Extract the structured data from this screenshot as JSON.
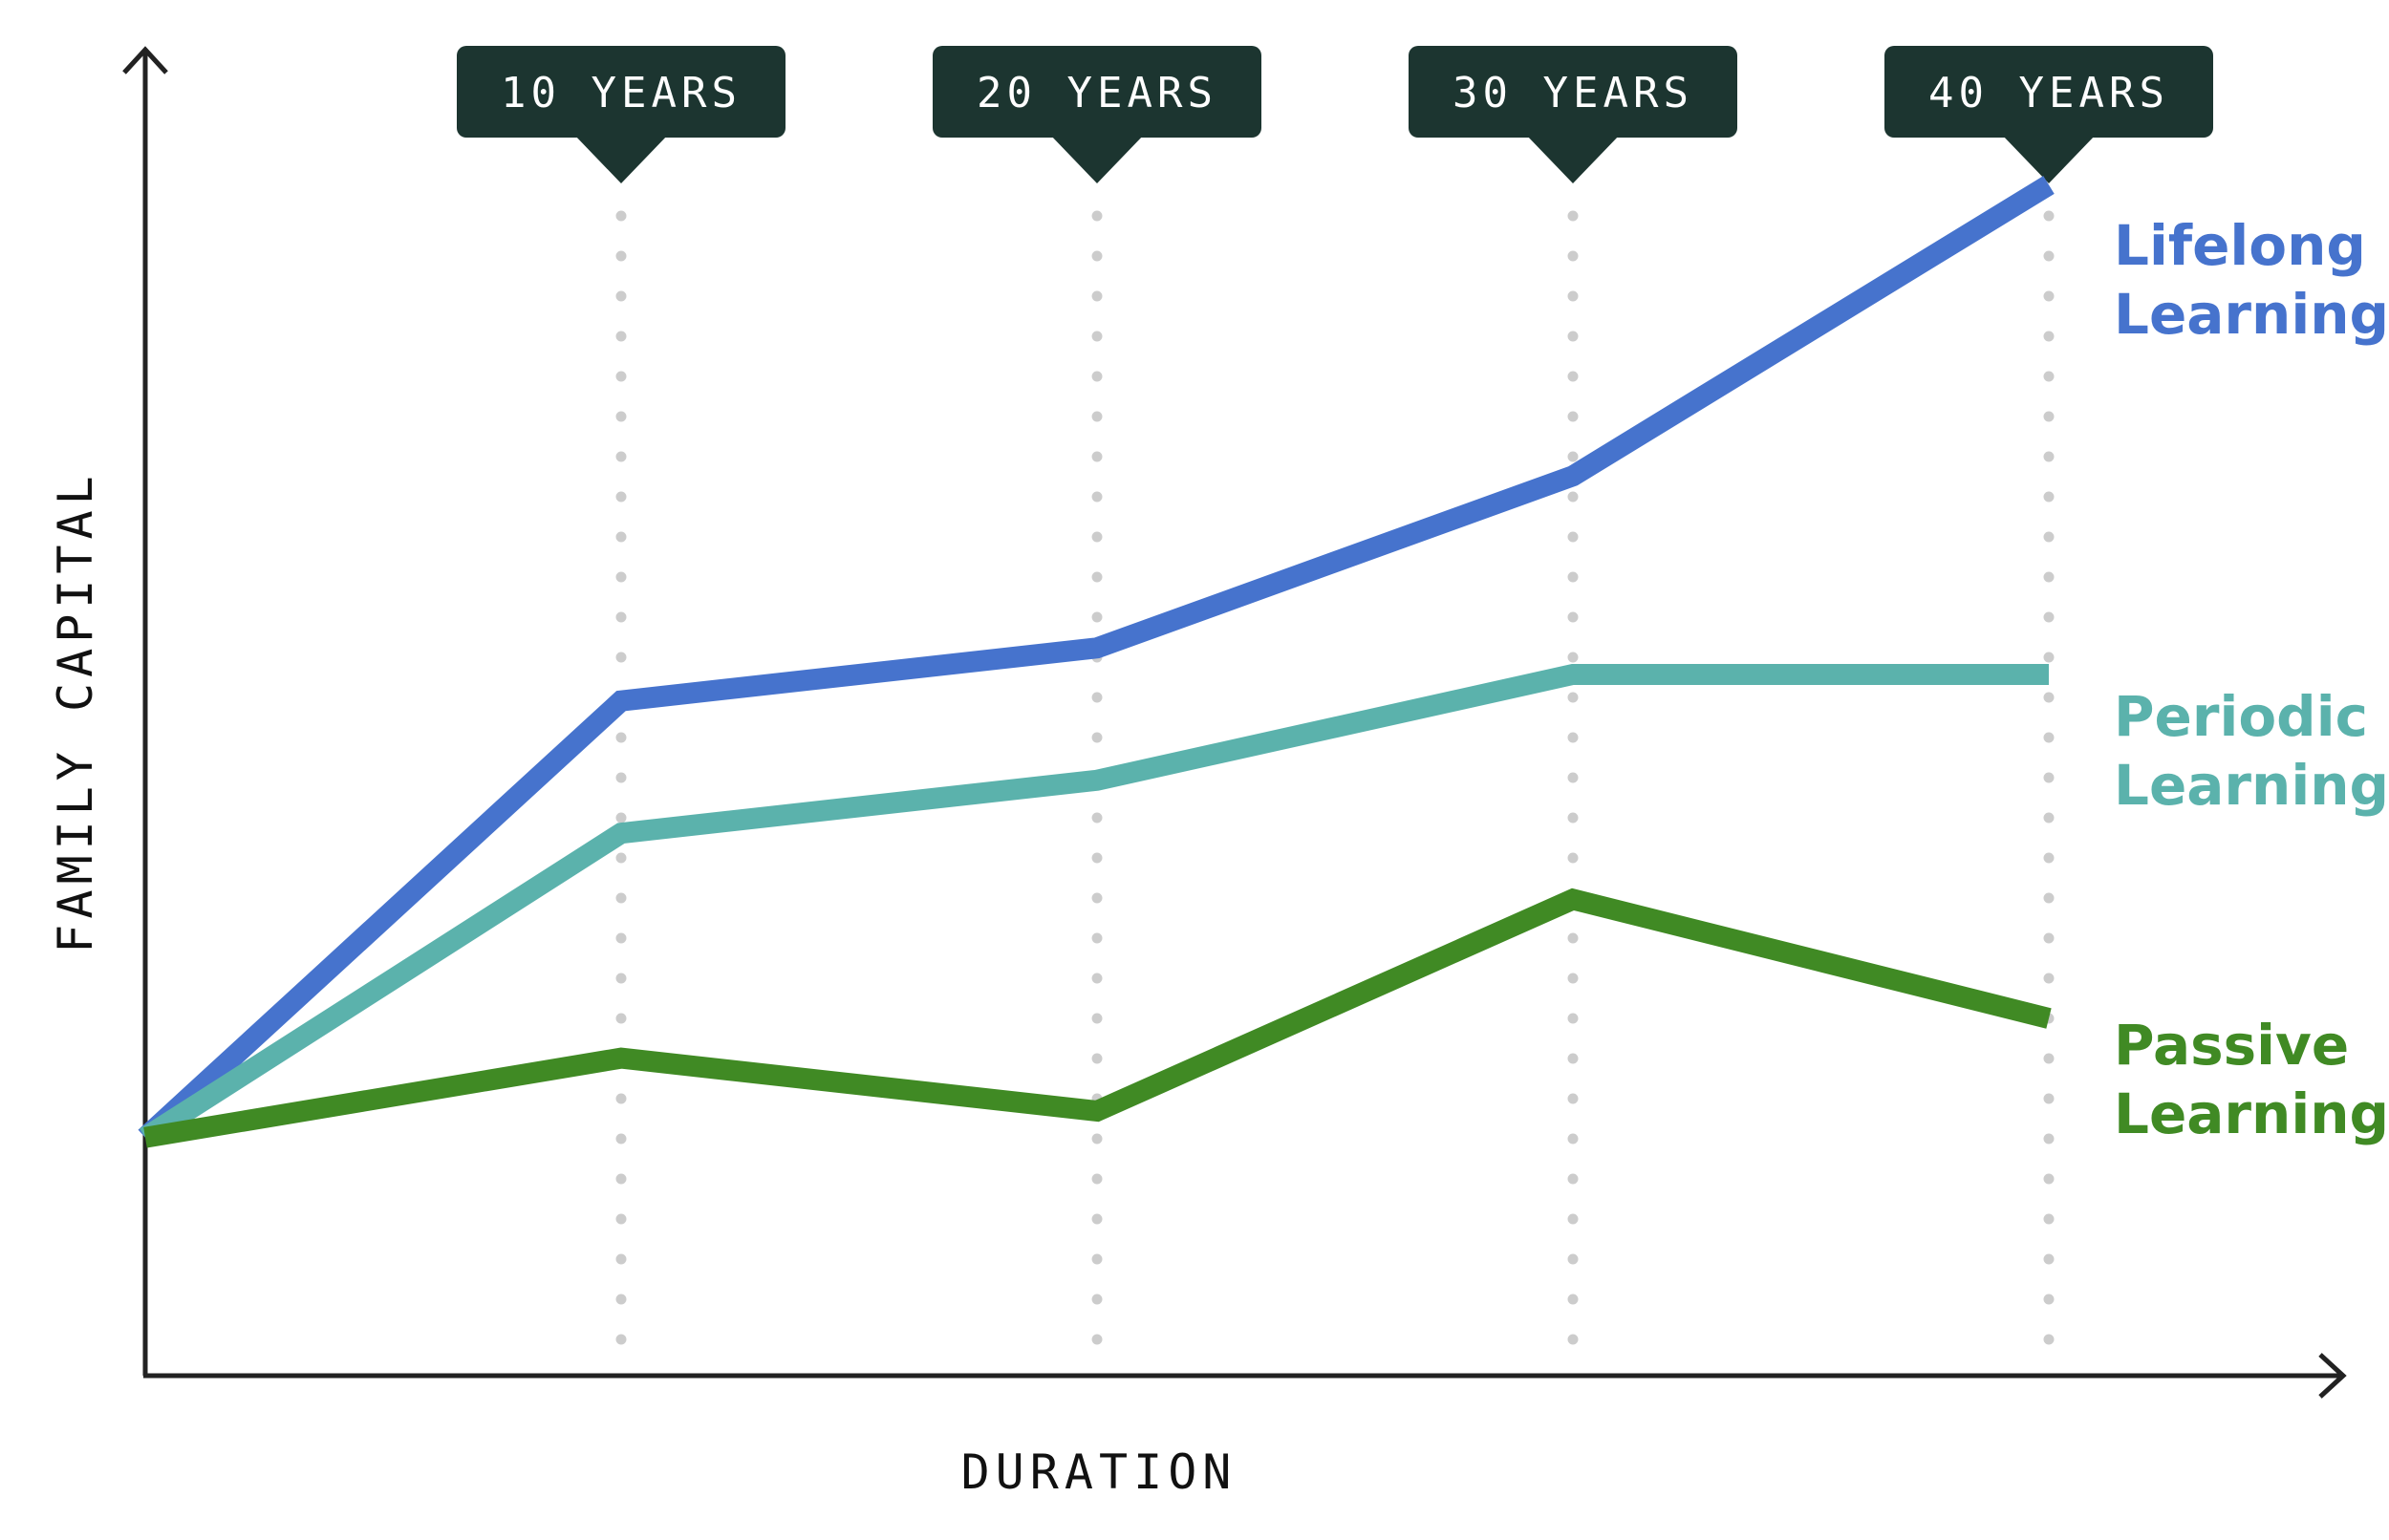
{
  "chart_data": {
    "type": "line",
    "title": "",
    "xlabel": "DURATION",
    "ylabel": "FAMILY CAPITAL",
    "x": [
      0,
      10,
      20,
      30,
      40
    ],
    "xlim": [
      0,
      40
    ],
    "ylim": [
      0,
      100
    ],
    "markers": [
      {
        "x": 10,
        "label": "10 YEARS"
      },
      {
        "x": 20,
        "label": "20 YEARS"
      },
      {
        "x": 30,
        "label": "30 YEARS"
      },
      {
        "x": 40,
        "label": "40 YEARS"
      }
    ],
    "series": [
      {
        "name": "Lifelong Learning",
        "label_lines": [
          "Lifelong",
          "Learning"
        ],
        "color": "#4673CD",
        "values": [
          18,
          51,
          55,
          68,
          90
        ]
      },
      {
        "name": "Periodic Learning",
        "label_lines": [
          "Periodic",
          "Learning"
        ],
        "color": "#5BB2AC",
        "values": [
          18,
          41,
          45,
          53,
          53
        ]
      },
      {
        "name": "Passive Learning",
        "label_lines": [
          "Passive",
          "Learning"
        ],
        "color": "#408A24",
        "values": [
          18,
          24,
          20,
          36,
          27
        ]
      }
    ],
    "grid": false,
    "legend": "right, inline labels at line ends"
  },
  "colors": {
    "axis": "#222222",
    "marker_bg": "#1C3530",
    "marker_dots": "#CCCCCC"
  }
}
